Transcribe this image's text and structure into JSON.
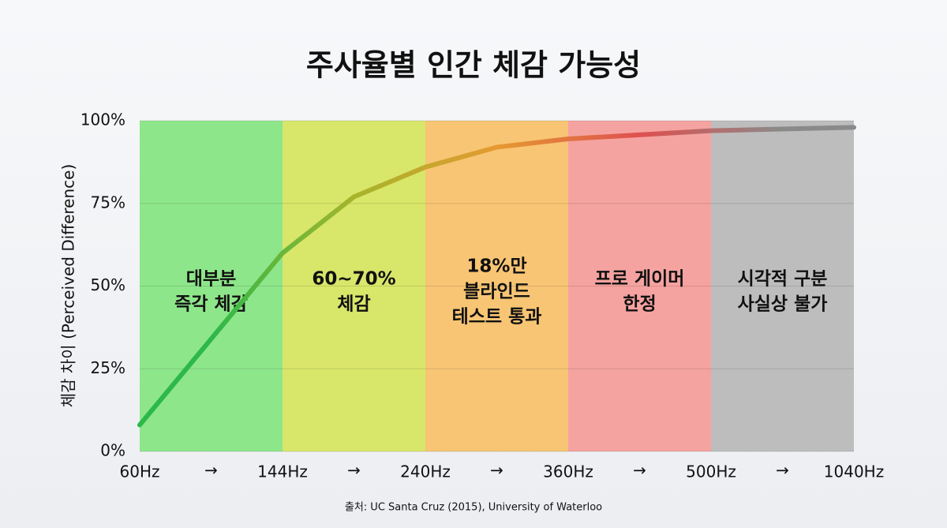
{
  "chart_data": {
    "type": "line",
    "title": "주사율별 인간 체감 가능성",
    "y_label": "체감 차이 (Perceived Difference)",
    "source": "출처: UC Santa Cruz (2015), University of Waterloo",
    "xticks": [
      {
        "value": 60,
        "label": "60Hz"
      },
      {
        "value": 144,
        "label": "144Hz"
      },
      {
        "value": 240,
        "label": "240Hz"
      },
      {
        "value": 360,
        "label": "360Hz"
      },
      {
        "value": 500,
        "label": "500Hz"
      },
      {
        "value": 1040,
        "label": "1040Hz"
      }
    ],
    "xlim": [
      60,
      1040
    ],
    "x_arrows": [
      "→",
      "→",
      "→",
      "→",
      "→"
    ],
    "ylim": [
      0,
      100
    ],
    "yticks": [
      {
        "value": 0,
        "label": "0%"
      },
      {
        "value": 25,
        "label": "25%"
      },
      {
        "value": 50,
        "label": "50%"
      },
      {
        "value": 75,
        "label": "75%"
      },
      {
        "value": 100,
        "label": "100%"
      }
    ],
    "grid": true,
    "zones": [
      {
        "label": [
          "대부분",
          "즉각 체감"
        ],
        "color": "#8ee68a",
        "line_color": "#2db84a"
      },
      {
        "label": [
          "60~70%",
          "체감"
        ],
        "color": "#d8e66a",
        "line_color": "#a5b52a"
      },
      {
        "label": [
          "18%만",
          "블라인드",
          "테스트 통과"
        ],
        "color": "#f8c574",
        "line_color": "#e59a30"
      },
      {
        "label": [
          "프로 게이머",
          "한정"
        ],
        "color": "#f5a3a0",
        "line_color": "#de5050"
      },
      {
        "label": [
          "시각적 구분",
          "사실상 불가"
        ],
        "color": "#bdbdbd",
        "line_color": "#8a8a8a"
      }
    ],
    "x": [
      60,
      102,
      144,
      192,
      240,
      300,
      360,
      500,
      1040
    ],
    "values": [
      8,
      34,
      60,
      77,
      86,
      92,
      94.5,
      97,
      98
    ]
  }
}
